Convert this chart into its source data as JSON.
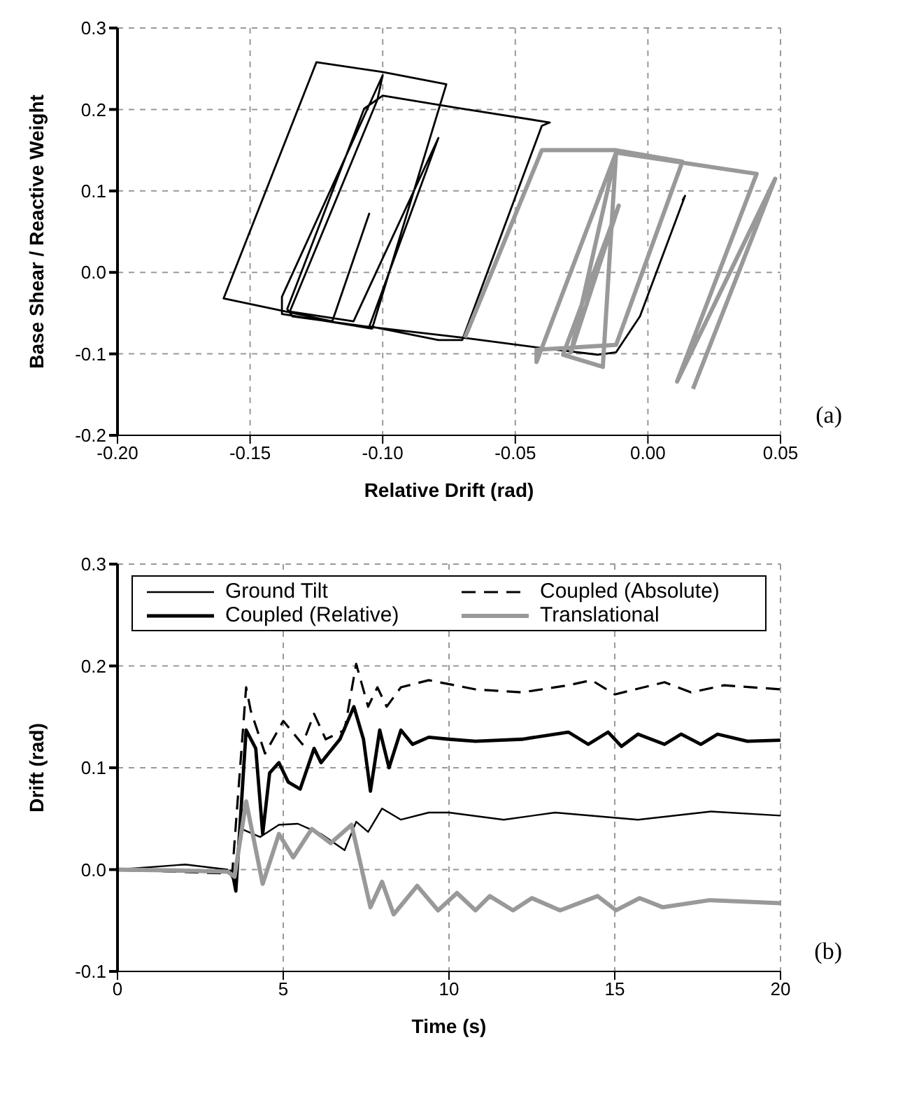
{
  "chart_data": [
    {
      "type": "line",
      "xlabel": "Relative Drift (rad)",
      "ylabel": "Base Shear / Reactive Weight",
      "annotations": [
        "(a)"
      ],
      "xlim": [
        -0.2,
        0.05
      ],
      "ylim": [
        -0.2,
        0.3
      ],
      "xticks": [
        {
          "value": -0.2,
          "label": "-0.20"
        },
        -0.15,
        {
          "value": -0.1,
          "label": "-0.10"
        },
        -0.05,
        {
          "value": 0,
          "label": "0.00"
        },
        0.05
      ],
      "yticks": [
        -0.2,
        -0.1,
        {
          "value": 0,
          "label": "0.0"
        },
        0.1,
        0.2,
        0.3
      ],
      "grid": true,
      "series": [
        {
          "color": "#000000",
          "x": [
            -0.105,
            -0.119,
            -0.16,
            -0.125,
            -0.1,
            -0.076,
            -0.104,
            -0.138,
            -0.138,
            -0.1,
            -0.102,
            -0.135,
            -0.111,
            -0.079,
            -0.105,
            -0.079,
            -0.07,
            -0.04,
            -0.037,
            -0.072,
            -0.1,
            -0.107,
            -0.136,
            -0.134,
            -0.107,
            -0.07,
            -0.042,
            -0.019,
            -0.012,
            -0.003,
            0.014,
            0.013
          ],
          "values": [
            0.073,
            -0.06,
            -0.032,
            0.258,
            0.246,
            0.231,
            -0.069,
            -0.051,
            -0.03,
            0.242,
            0.212,
            -0.048,
            -0.06,
            0.165,
            -0.066,
            -0.083,
            -0.083,
            0.18,
            0.184,
            0.202,
            0.217,
            0.201,
            -0.045,
            -0.054,
            -0.066,
            -0.08,
            -0.092,
            -0.101,
            -0.098,
            -0.054,
            0.094,
            0.088
          ]
        },
        {
          "color": "#999999",
          "x": [
            -0.069,
            -0.04,
            -0.012,
            0.013,
            -0.012,
            -0.042,
            -0.042,
            -0.012,
            -0.017,
            -0.032,
            -0.011,
            -0.029,
            -0.012,
            0.041,
            0.011,
            0.048,
            0.017
          ],
          "values": [
            -0.08,
            0.15,
            0.15,
            0.136,
            -0.089,
            -0.095,
            -0.11,
            0.147,
            -0.116,
            -0.101,
            0.082,
            -0.098,
            0.147,
            0.121,
            -0.134,
            0.115,
            -0.143
          ]
        }
      ]
    },
    {
      "type": "line",
      "xlabel": "Time (s)",
      "ylabel": "Drift (rad)",
      "annotations": [
        "(b)"
      ],
      "xlim": [
        0,
        20
      ],
      "ylim": [
        -0.1,
        0.3
      ],
      "xticks": [
        0,
        5,
        10,
        15,
        20
      ],
      "yticks": [
        -0.1,
        {
          "value": 0,
          "label": "0.0"
        },
        0.1,
        0.2,
        0.3
      ],
      "grid": true,
      "legend": "top",
      "series": [
        {
          "name": "Ground Tilt",
          "color": "#000000",
          "line_style": "solid",
          "x": [
            0,
            2.05,
            3.32,
            3.53,
            3.74,
            4.3,
            4.87,
            5.44,
            6.14,
            6.85,
            7.2,
            7.56,
            7.98,
            8.55,
            9.39,
            10,
            11.65,
            13.2,
            15.7,
            17.9,
            20
          ],
          "values": [
            0,
            0.005,
            0,
            -0.012,
            0.04,
            0.032,
            0.044,
            0.045,
            0.035,
            0.019,
            0.047,
            0.037,
            0.06,
            0.049,
            0.056,
            0.056,
            0.049,
            0.056,
            0.049,
            0.057,
            0.053
          ]
        },
        {
          "name": "Coupled (Absolute)",
          "color": "#000000",
          "line_style": "dashed",
          "x": [
            0,
            3.46,
            3.88,
            4.02,
            4.45,
            5.0,
            5.58,
            5.93,
            6.28,
            6.85,
            7.2,
            7.56,
            7.84,
            8.12,
            8.55,
            9.39,
            10.8,
            12.2,
            13.6,
            14.3,
            15,
            16.5,
            17.3,
            18.3,
            20
          ],
          "values": [
            0,
            -0.004,
            0.179,
            0.156,
            0.114,
            0.146,
            0.123,
            0.153,
            0.128,
            0.137,
            0.202,
            0.16,
            0.179,
            0.16,
            0.179,
            0.186,
            0.177,
            0.174,
            0.181,
            0.186,
            0.172,
            0.184,
            0.174,
            0.181,
            0.177
          ]
        },
        {
          "name": "Coupled (Relative)",
          "color": "#000000",
          "line_style": "solid",
          "x": [
            0,
            3.46,
            3.57,
            3.88,
            4.17,
            4.38,
            4.59,
            4.87,
            5.15,
            5.51,
            5.93,
            6.14,
            6.71,
            7.13,
            7.42,
            7.63,
            7.91,
            8.19,
            8.55,
            8.9,
            9.39,
            10,
            10.8,
            12.2,
            13.6,
            14.2,
            14.8,
            15.2,
            15.7,
            16.5,
            17.0,
            17.6,
            18.1,
            19.0,
            20
          ],
          "values": [
            0,
            -0.002,
            -0.021,
            0.137,
            0.119,
            0.035,
            0.095,
            0.105,
            0.086,
            0.079,
            0.119,
            0.105,
            0.128,
            0.16,
            0.128,
            0.077,
            0.137,
            0.1,
            0.137,
            0.123,
            0.13,
            0.128,
            0.126,
            0.128,
            0.135,
            0.123,
            0.135,
            0.121,
            0.133,
            0.123,
            0.133,
            0.123,
            0.133,
            0.126,
            0.127
          ]
        },
        {
          "name": "Translational",
          "color": "#999999",
          "line_style": "solid",
          "x": [
            0,
            2.05,
            3.32,
            3.53,
            3.88,
            4.38,
            4.87,
            5.3,
            5.86,
            6.43,
            7.06,
            7.63,
            7.98,
            8.33,
            9.04,
            9.67,
            10.24,
            10.8,
            11.23,
            11.93,
            12.5,
            13.35,
            14.48,
            15.04,
            15.75,
            16.45,
            17.87,
            20
          ],
          "values": [
            0,
            -0.001,
            -0.002,
            -0.007,
            0.067,
            -0.014,
            0.035,
            0.012,
            0.04,
            0.026,
            0.044,
            -0.037,
            -0.012,
            -0.044,
            -0.016,
            -0.04,
            -0.023,
            -0.04,
            -0.026,
            -0.04,
            -0.028,
            -0.04,
            -0.026,
            -0.04,
            -0.028,
            -0.037,
            -0.03,
            -0.033
          ]
        }
      ]
    }
  ]
}
